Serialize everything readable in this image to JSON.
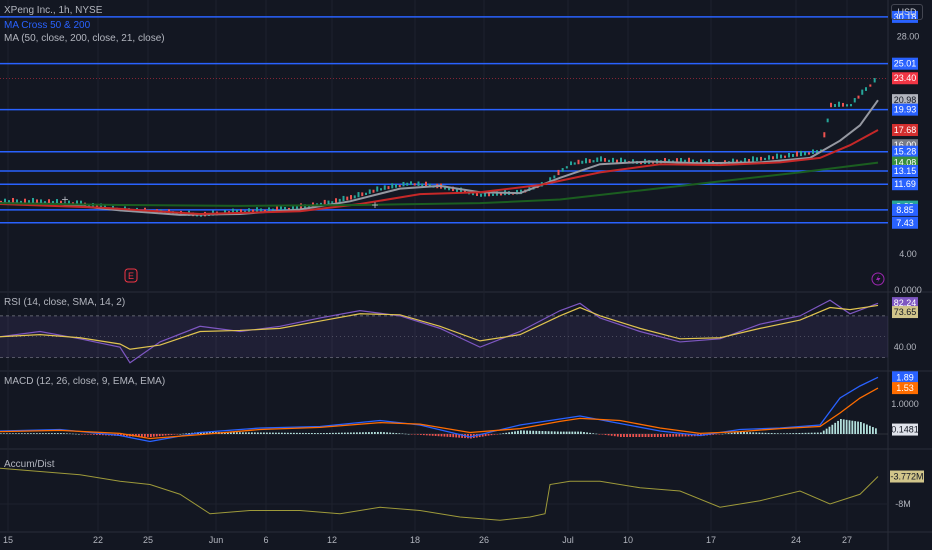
{
  "header": {
    "symbol_line": "XPeng Inc., 1h, NYSE",
    "indicator_1": "MA Cross 50 & 200",
    "indicator_2": "MA (50, close, 200, close, 21, close)",
    "currency": "USD"
  },
  "colors": {
    "background": "#131722",
    "level_line": "#2962ff",
    "ma_fast": "#9598a1",
    "ma_mid": "#c62828",
    "ma_slow": "#1b5e20",
    "candle_up": "#26a69a",
    "candle_down": "#ef5350",
    "rsi": "#7e57c2",
    "rsi_ma": "#e0c450",
    "macd": "#2962ff",
    "signal": "#ff6d00",
    "accum": "#9e9a3a"
  },
  "chart_data": [
    {
      "type": "line",
      "panel": "price",
      "y_axis_labels": [
        "28.00",
        "4.00",
        "0.0000"
      ],
      "y_axis_values": [
        28.0,
        4.0,
        0.0
      ],
      "ylim": [
        0,
        30.5
      ],
      "horizontal_levels": [
        30.18,
        25.01,
        19.93,
        15.28,
        13.15,
        11.69,
        8.85,
        7.43
      ],
      "price_tags": [
        {
          "label": "30.18",
          "value": 30.18,
          "color": "#2962ff"
        },
        {
          "label": "25.01",
          "value": 25.01,
          "color": "#2962ff"
        },
        {
          "label": "23.40",
          "value": 23.4,
          "color": "#f23645"
        },
        {
          "label": "20.98",
          "value": 20.98,
          "color": "#b2b5be"
        },
        {
          "label": "19.93",
          "value": 19.93,
          "color": "#2962ff"
        },
        {
          "label": "17.68",
          "value": 17.68,
          "color": "#d32f2f"
        },
        {
          "label": "16.00",
          "value": 16.0,
          "color": "#787b86"
        },
        {
          "label": "15.28",
          "value": 15.28,
          "color": "#2962ff"
        },
        {
          "label": "14.08",
          "value": 14.08,
          "color": "#388e3c"
        },
        {
          "label": "13.15",
          "value": 13.15,
          "color": "#2962ff"
        },
        {
          "label": "11.69",
          "value": 11.69,
          "color": "#2962ff"
        },
        {
          "label": "9.22",
          "value": 9.22,
          "color": "#26a69a"
        },
        {
          "label": "8.85",
          "value": 8.85,
          "color": "#2962ff"
        },
        {
          "label": "7.43",
          "value": 7.43,
          "color": "#2962ff"
        }
      ],
      "x_tick_labels": [
        "15",
        "22",
        "25",
        "Jun",
        "6",
        "12",
        "18",
        "26",
        "Jul",
        "10",
        "17",
        "24",
        "27"
      ],
      "price_path": [
        [
          0,
          9.6
        ],
        [
          40,
          9.6
        ],
        [
          80,
          9.3
        ],
        [
          120,
          8.7
        ],
        [
          160,
          8.4
        ],
        [
          200,
          8.1
        ],
        [
          240,
          8.5
        ],
        [
          280,
          8.7
        ],
        [
          320,
          9.3
        ],
        [
          350,
          10.0
        ],
        [
          380,
          11.0
        ],
        [
          410,
          11.6
        ],
        [
          440,
          11.2
        ],
        [
          480,
          10.3
        ],
        [
          520,
          10.6
        ],
        [
          545,
          11.6
        ],
        [
          570,
          13.8
        ],
        [
          600,
          14.2
        ],
        [
          640,
          13.9
        ],
        [
          680,
          14.1
        ],
        [
          720,
          13.8
        ],
        [
          760,
          14.3
        ],
        [
          800,
          14.8
        ],
        [
          820,
          15.2
        ],
        [
          830,
          20.2
        ],
        [
          850,
          20.3
        ],
        [
          865,
          22.0
        ],
        [
          878,
          23.4
        ]
      ],
      "series": [
        {
          "name": "",
          "color_key": "ma_fast",
          "points": [
            [
              0,
              9.6
            ],
            [
              60,
              9.5
            ],
            [
              120,
              8.8
            ],
            [
              180,
              8.3
            ],
            [
              240,
              8.4
            ],
            [
              300,
              8.9
            ],
            [
              350,
              9.8
            ],
            [
              400,
              11.2
            ],
            [
              440,
              11.5
            ],
            [
              480,
              10.8
            ],
            [
              520,
              10.7
            ],
            [
              560,
              12.4
            ],
            [
              600,
              13.9
            ],
            [
              650,
              14.2
            ],
            [
              700,
              14.0
            ],
            [
              760,
              14.1
            ],
            [
              810,
              14.6
            ],
            [
              840,
              16.5
            ],
            [
              860,
              18.2
            ],
            [
              878,
              20.98
            ]
          ]
        },
        {
          "name": "",
          "color_key": "ma_mid",
          "points": [
            [
              0,
              9.5
            ],
            [
              100,
              9.1
            ],
            [
              200,
              8.4
            ],
            [
              300,
              8.7
            ],
            [
              360,
              9.5
            ],
            [
              420,
              10.6
            ],
            [
              480,
              10.8
            ],
            [
              540,
              11.6
            ],
            [
              600,
              13.0
            ],
            [
              660,
              13.9
            ],
            [
              720,
              13.8
            ],
            [
              780,
              14.1
            ],
            [
              820,
              14.6
            ],
            [
              850,
              16.0
            ],
            [
              878,
              17.68
            ]
          ]
        },
        {
          "name": "",
          "color_key": "ma_slow",
          "points": [
            [
              0,
              9.6
            ],
            [
              120,
              9.4
            ],
            [
              240,
              9.3
            ],
            [
              360,
              9.4
            ],
            [
              480,
              9.6
            ],
            [
              560,
              10.0
            ],
            [
              640,
              11.0
            ],
            [
              720,
              12.0
            ],
            [
              800,
              13.0
            ],
            [
              878,
              14.08
            ]
          ]
        }
      ]
    },
    {
      "type": "line",
      "panel": "rsi",
      "title": "RSI (14, close, SMA, 14, 2)",
      "y_axis_labels": [
        "40.00"
      ],
      "ylim": [
        20,
        90
      ],
      "band": [
        30,
        70
      ],
      "last_values": [
        {
          "label": "82.24",
          "value": 82.24
        },
        {
          "label": "73.65",
          "value": 73.65
        }
      ],
      "x": [
        0,
        40,
        80,
        120,
        130,
        160,
        200,
        240,
        280,
        320,
        360,
        400,
        440,
        480,
        520,
        560,
        580,
        600,
        640,
        680,
        720,
        760,
        800,
        830,
        850,
        878
      ],
      "rsi_values": [
        50,
        55,
        48,
        40,
        25,
        45,
        60,
        55,
        60,
        68,
        75,
        70,
        58,
        40,
        55,
        75,
        82,
        68,
        55,
        45,
        48,
        62,
        70,
        85,
        72,
        82
      ],
      "rsi_ma_values": [
        50,
        52,
        49,
        43,
        38,
        42,
        55,
        56,
        58,
        65,
        72,
        71,
        60,
        46,
        52,
        70,
        78,
        70,
        58,
        48,
        49,
        58,
        66,
        78,
        76,
        80
      ]
    },
    {
      "type": "line",
      "panel": "macd",
      "title": "MACD (12, 26, close, 9, EMA, EMA)",
      "y_axis_labels": [
        "1.0000"
      ],
      "ylim": [
        -0.4,
        2.0
      ],
      "last_values": [
        {
          "label": "1.89",
          "value": 1.89
        },
        {
          "label": "1.53",
          "value": 1.53
        },
        {
          "label": "0.1481",
          "value": 0.1481
        }
      ],
      "x": [
        0,
        60,
        120,
        150,
        200,
        260,
        320,
        380,
        420,
        470,
        520,
        560,
        580,
        620,
        660,
        700,
        740,
        780,
        820,
        840,
        860,
        878
      ],
      "macd_values": [
        0.1,
        0.15,
        -0.05,
        -0.25,
        0.05,
        0.2,
        0.25,
        0.45,
        0.3,
        -0.1,
        0.3,
        0.5,
        0.6,
        0.35,
        0.1,
        -0.05,
        0.15,
        0.2,
        0.3,
        1.2,
        1.6,
        1.89
      ],
      "signal_values": [
        0.08,
        0.12,
        0.02,
        -0.15,
        -0.02,
        0.15,
        0.22,
        0.38,
        0.33,
        0.05,
        0.18,
        0.42,
        0.52,
        0.45,
        0.2,
        0.02,
        0.08,
        0.18,
        0.25,
        0.7,
        1.2,
        1.53
      ],
      "histogram_values": [
        0.02,
        0.03,
        -0.07,
        -0.1,
        0.07,
        0.05,
        0.03,
        0.07,
        -0.03,
        -0.15,
        0.12,
        0.08,
        0.08,
        -0.1,
        -0.1,
        -0.07,
        0.07,
        0.02,
        0.05,
        0.5,
        0.4,
        0.1481
      ]
    },
    {
      "type": "line",
      "panel": "accum_dist",
      "title": "Accum/Dist",
      "y_axis_labels": [
        "-8M"
      ],
      "ylim": [
        -12,
        0
      ],
      "last_values": [
        {
          "label": "-3.772M",
          "value": -3.772
        }
      ],
      "x": [
        0,
        40,
        80,
        120,
        150,
        180,
        210,
        250,
        300,
        340,
        380,
        420,
        460,
        500,
        530,
        545,
        550,
        570,
        600,
        640,
        680,
        720,
        760,
        800,
        830,
        860,
        878
      ],
      "values": [
        -2.5,
        -3.0,
        -3.5,
        -4.5,
        -5.0,
        -6.5,
        -9.5,
        -9.0,
        -9.0,
        -9.5,
        -8.5,
        -9.0,
        -10.0,
        -10.5,
        -10.0,
        -9.5,
        -5.0,
        -4.5,
        -4.5,
        -5.5,
        -6.0,
        -8.5,
        -7.5,
        -6.0,
        -8.0,
        -6.5,
        -3.772
      ]
    }
  ]
}
